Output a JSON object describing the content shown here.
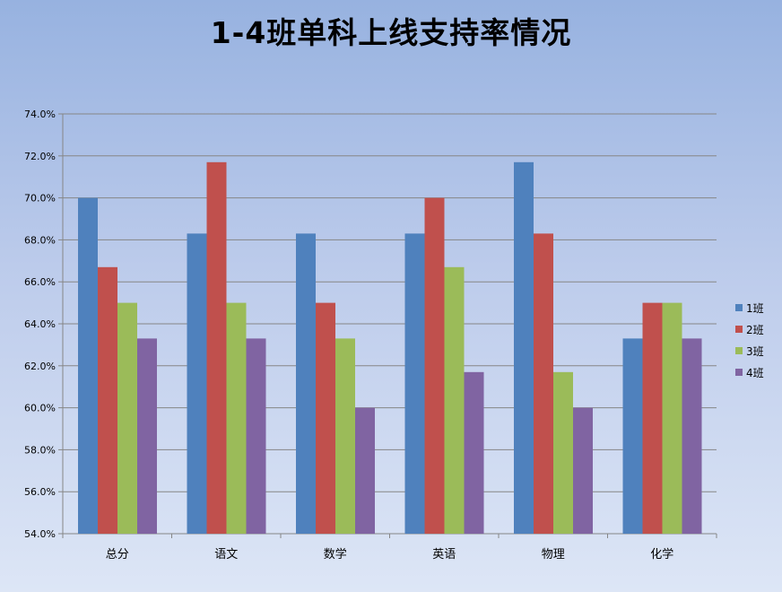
{
  "chart_data": {
    "type": "bar",
    "title": "1-4班单科上线支持率情况",
    "xlabel": "",
    "ylabel": "",
    "categories": [
      "总分",
      "语文",
      "数学",
      "英语",
      "物理",
      "化学"
    ],
    "series": [
      {
        "name": "1班",
        "color": "#4f81bd",
        "values": [
          70.0,
          68.3,
          68.3,
          68.3,
          71.7,
          63.3
        ]
      },
      {
        "name": "2班",
        "color": "#c0504d",
        "values": [
          66.7,
          71.7,
          65.0,
          70.0,
          68.3,
          65.0
        ]
      },
      {
        "name": "3班",
        "color": "#9bbb59",
        "values": [
          65.0,
          65.0,
          63.3,
          66.7,
          61.7,
          65.0
        ]
      },
      {
        "name": "4班",
        "color": "#8064a2",
        "values": [
          63.3,
          63.3,
          60.0,
          61.7,
          60.0,
          63.3
        ]
      }
    ],
    "ylim": [
      54.0,
      74.0
    ],
    "yticks": [
      "54.0%",
      "56.0%",
      "58.0%",
      "60.0%",
      "62.0%",
      "64.0%",
      "66.0%",
      "68.0%",
      "70.0%",
      "72.0%",
      "74.0%"
    ],
    "grid": true,
    "legend_position": "right"
  }
}
